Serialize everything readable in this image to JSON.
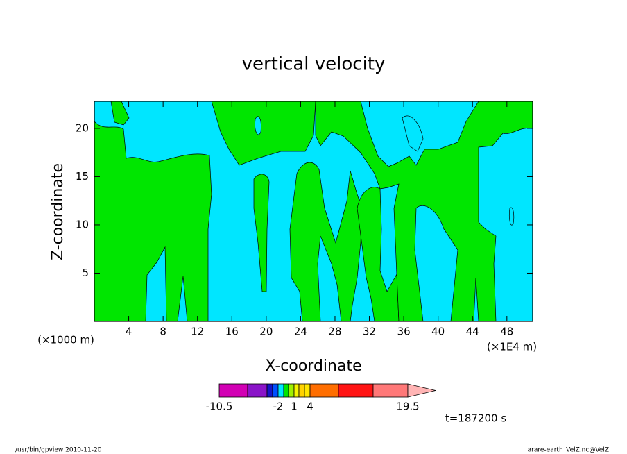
{
  "chart_data": {
    "type": "contour",
    "title": "vertical velocity",
    "x_label": "X-coordinate",
    "y_label": "Z-coordinate",
    "x_unit": "(×1E4 m)",
    "y_unit": "(×1000 m)",
    "xlim": [
      0,
      51
    ],
    "ylim": [
      0,
      22.8
    ],
    "xticks": [
      4,
      8,
      12,
      16,
      20,
      24,
      28,
      32,
      36,
      40,
      44,
      48
    ],
    "yticks": [
      5,
      10,
      15,
      20
    ],
    "colorbar": {
      "colors": [
        "#d200b4",
        "#8a14c8",
        "#1414c8",
        "#0050ff",
        "#00e6ff",
        "#00e600",
        "#a0f000",
        "#f5f500",
        "#ffd200",
        "#ffe600",
        "#ff6e00",
        "#ff1414",
        "#ff7878"
      ],
      "over_color": "#ffb4b4",
      "ticks": [
        -10.5,
        -2,
        1,
        4,
        19.5
      ]
    },
    "time_label": "t=187200 s"
  },
  "footer": {
    "left": "/usr/bin/gpview  2010-11-20",
    "right": "arare-earth_VelZ.nc@VelZ"
  }
}
